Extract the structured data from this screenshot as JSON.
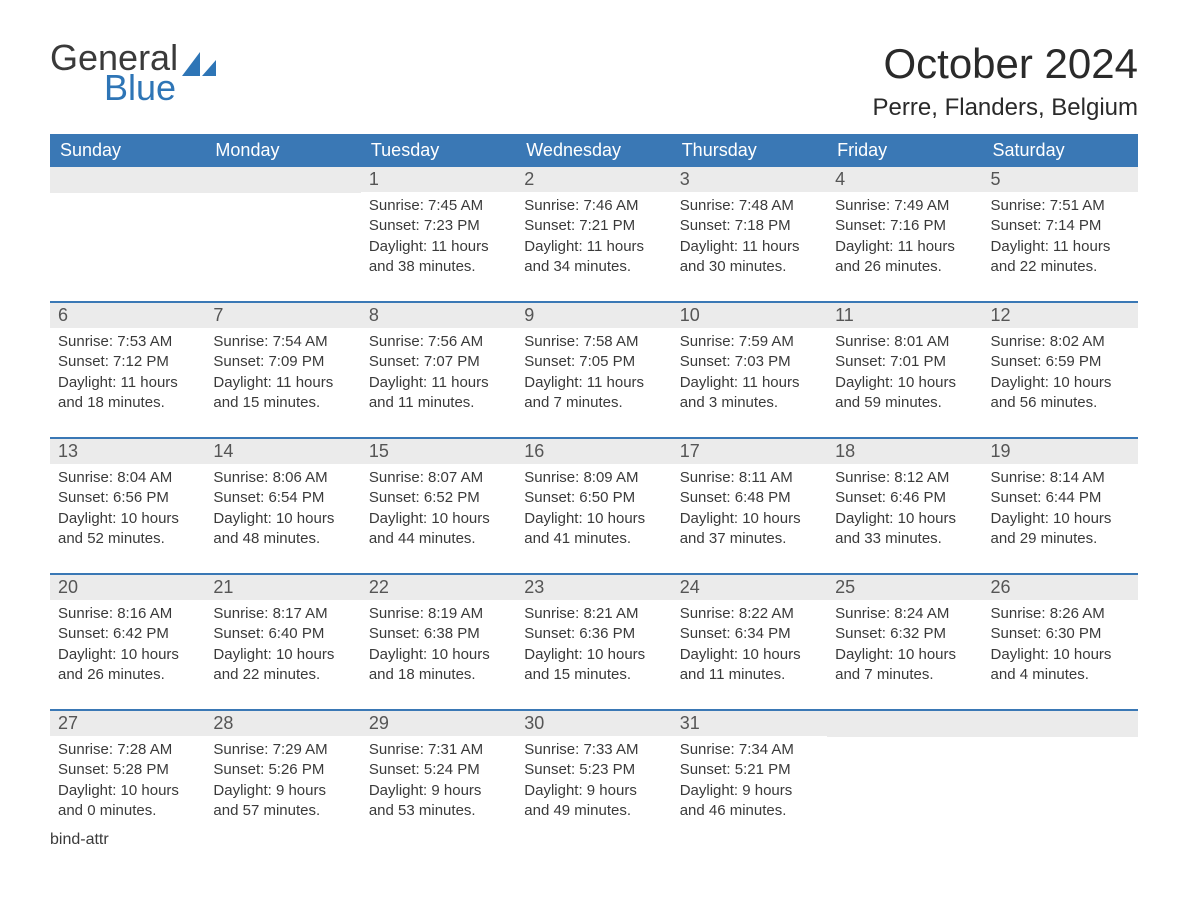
{
  "logo": {
    "word1": "General",
    "word2": "Blue",
    "accent_color": "#2e75b6",
    "text_color": "#3a3a3a"
  },
  "title": "October 2024",
  "location": "Perre, Flanders, Belgium",
  "colors": {
    "header_bg": "#3a78b5",
    "header_text": "#ffffff",
    "daynum_bg": "#ebebeb",
    "daynum_text": "#555555",
    "body_text": "#3a3a3a",
    "row_border": "#3a78b5",
    "page_bg": "#ffffff"
  },
  "typography": {
    "title_fontsize": 42,
    "location_fontsize": 24,
    "dow_fontsize": 18,
    "daynum_fontsize": 18,
    "body_fontsize": 15
  },
  "layout": {
    "columns": 7,
    "rows": 5,
    "cell_min_height": 120
  },
  "days_of_week": [
    "Sunday",
    "Monday",
    "Tuesday",
    "Wednesday",
    "Thursday",
    "Friday",
    "Saturday"
  ],
  "weeks": [
    [
      null,
      null,
      {
        "n": "1",
        "sunrise": "Sunrise: 7:45 AM",
        "sunset": "Sunset: 7:23 PM",
        "daylight": "Daylight: 11 hours and 38 minutes."
      },
      {
        "n": "2",
        "sunrise": "Sunrise: 7:46 AM",
        "sunset": "Sunset: 7:21 PM",
        "daylight": "Daylight: 11 hours and 34 minutes."
      },
      {
        "n": "3",
        "sunrise": "Sunrise: 7:48 AM",
        "sunset": "Sunset: 7:18 PM",
        "daylight": "Daylight: 11 hours and 30 minutes."
      },
      {
        "n": "4",
        "sunrise": "Sunrise: 7:49 AM",
        "sunset": "Sunset: 7:16 PM",
        "daylight": "Daylight: 11 hours and 26 minutes."
      },
      {
        "n": "5",
        "sunrise": "Sunrise: 7:51 AM",
        "sunset": "Sunset: 7:14 PM",
        "daylight": "Daylight: 11 hours and 22 minutes."
      }
    ],
    [
      {
        "n": "6",
        "sunrise": "Sunrise: 7:53 AM",
        "sunset": "Sunset: 7:12 PM",
        "daylight": "Daylight: 11 hours and 18 minutes."
      },
      {
        "n": "7",
        "sunrise": "Sunrise: 7:54 AM",
        "sunset": "Sunset: 7:09 PM",
        "daylight": "Daylight: 11 hours and 15 minutes."
      },
      {
        "n": "8",
        "sunrise": "Sunrise: 7:56 AM",
        "sunset": "Sunset: 7:07 PM",
        "daylight": "Daylight: 11 hours and 11 minutes."
      },
      {
        "n": "9",
        "sunrise": "Sunrise: 7:58 AM",
        "sunset": "Sunset: 7:05 PM",
        "daylight": "Daylight: 11 hours and 7 minutes."
      },
      {
        "n": "10",
        "sunrise": "Sunrise: 7:59 AM",
        "sunset": "Sunset: 7:03 PM",
        "daylight": "Daylight: 11 hours and 3 minutes."
      },
      {
        "n": "11",
        "sunrise": "Sunrise: 8:01 AM",
        "sunset": "Sunset: 7:01 PM",
        "daylight": "Daylight: 10 hours and 59 minutes."
      },
      {
        "n": "12",
        "sunrise": "Sunrise: 8:02 AM",
        "sunset": "Sunset: 6:59 PM",
        "daylight": "Daylight: 10 hours and 56 minutes."
      }
    ],
    [
      {
        "n": "13",
        "sunrise": "Sunrise: 8:04 AM",
        "sunset": "Sunset: 6:56 PM",
        "daylight": "Daylight: 10 hours and 52 minutes."
      },
      {
        "n": "14",
        "sunrise": "Sunrise: 8:06 AM",
        "sunset": "Sunset: 6:54 PM",
        "daylight": "Daylight: 10 hours and 48 minutes."
      },
      {
        "n": "15",
        "sunrise": "Sunrise: 8:07 AM",
        "sunset": "Sunset: 6:52 PM",
        "daylight": "Daylight: 10 hours and 44 minutes."
      },
      {
        "n": "16",
        "sunrise": "Sunrise: 8:09 AM",
        "sunset": "Sunset: 6:50 PM",
        "daylight": "Daylight: 10 hours and 41 minutes."
      },
      {
        "n": "17",
        "sunrise": "Sunrise: 8:11 AM",
        "sunset": "Sunset: 6:48 PM",
        "daylight": "Daylight: 10 hours and 37 minutes."
      },
      {
        "n": "18",
        "sunrise": "Sunrise: 8:12 AM",
        "sunset": "Sunset: 6:46 PM",
        "daylight": "Daylight: 10 hours and 33 minutes."
      },
      {
        "n": "19",
        "sunrise": "Sunrise: 8:14 AM",
        "sunset": "Sunset: 6:44 PM",
        "daylight": "Daylight: 10 hours and 29 minutes."
      }
    ],
    [
      {
        "n": "20",
        "sunrise": "Sunrise: 8:16 AM",
        "sunset": "Sunset: 6:42 PM",
        "daylight": "Daylight: 10 hours and 26 minutes."
      },
      {
        "n": "21",
        "sunrise": "Sunrise: 8:17 AM",
        "sunset": "Sunset: 6:40 PM",
        "daylight": "Daylight: 10 hours and 22 minutes."
      },
      {
        "n": "22",
        "sunrise": "Sunrise: 8:19 AM",
        "sunset": "Sunset: 6:38 PM",
        "daylight": "Daylight: 10 hours and 18 minutes."
      },
      {
        "n": "23",
        "sunrise": "Sunrise: 8:21 AM",
        "sunset": "Sunset: 6:36 PM",
        "daylight": "Daylight: 10 hours and 15 minutes."
      },
      {
        "n": "24",
        "sunrise": "Sunrise: 8:22 AM",
        "sunset": "Sunset: 6:34 PM",
        "daylight": "Daylight: 10 hours and 11 minutes."
      },
      {
        "n": "25",
        "sunrise": "Sunrise: 8:24 AM",
        "sunset": "Sunset: 6:32 PM",
        "daylight": "Daylight: 10 hours and 7 minutes."
      },
      {
        "n": "26",
        "sunrise": "Sunrise: 8:26 AM",
        "sunset": "Sunset: 6:30 PM",
        "daylight": "Daylight: 10 hours and 4 minutes."
      }
    ],
    [
      {
        "n": "27",
        "sunrise": "Sunrise: 7:28 AM",
        "sunset": "Sunset: 5:28 PM",
        "daylight": "Daylight: 10 hours and 0 minutes."
      },
      {
        "n": "28",
        "sunrise": "Sunrise: 7:29 AM",
        "sunset": "Sunset: 5:26 PM",
        "daylight": "Daylight: 9 hours and 57 minutes."
      },
      {
        "n": "29",
        "sunrise": "Sunrise: 7:31 AM",
        "sunset": "Sunset: 5:24 PM",
        "daylight": "Daylight: 9 hours and 53 minutes."
      },
      {
        "n": "30",
        "sunrise": "Sunrise: 7:33 AM",
        "sunset": "Sunset: 5:23 PM",
        "daylight": "Daylight: 9 hours and 49 minutes."
      },
      {
        "n": "31",
        "sunrise": "Sunrise: 7:34 AM",
        "sunset": "Sunset: 5:21 PM",
        "daylight": "Daylight: 9 hours and 46 minutes."
      },
      null,
      null
    ]
  ]
}
